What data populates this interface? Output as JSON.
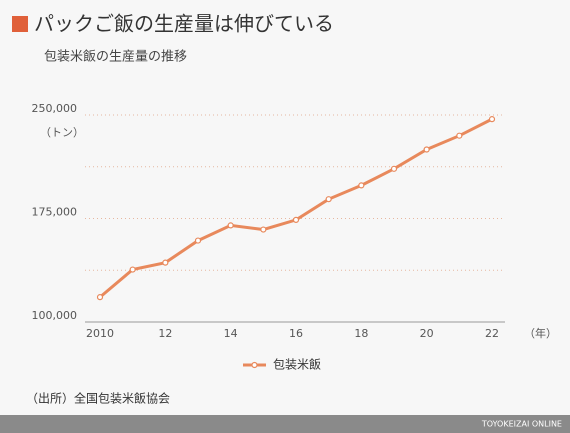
{
  "chart_data": {
    "type": "line",
    "title": "パックご飯の生産量は伸びている",
    "subtitle": "包装米飯の生産量の推移",
    "y_unit": "（トン）",
    "x_unit": "（年）",
    "source": "（出所）全国包装米飯協会",
    "brand": "TOYOKEIZAI ONLINE",
    "categories": [
      "2010",
      null,
      "12",
      null,
      "14",
      null,
      "16",
      null,
      "18",
      null,
      "20",
      null,
      "22"
    ],
    "series": [
      {
        "name": "包装米飯",
        "color": "#e8895c",
        "values": [
          118000,
          138000,
          143000,
          159000,
          170000,
          167000,
          174000,
          189000,
          199000,
          211000,
          225000,
          235000,
          247000
        ]
      }
    ],
    "ylim": [
      100000,
      250000
    ],
    "yticks": [
      {
        "value": 100000,
        "label": "100,000"
      },
      {
        "value": 175000,
        "label": "175,000"
      },
      {
        "value": 250000,
        "label": "250,000"
      }
    ],
    "minor_yticks": [
      137500,
      212500
    ],
    "grid": true
  }
}
